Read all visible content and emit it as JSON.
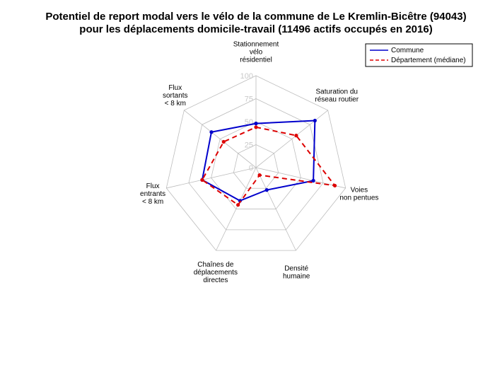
{
  "chart_data": {
    "type": "radar",
    "title_lines": [
      "Potentiel de report modal vers le vélo de la commune de Le Kremlin-Bicêtre (94043)",
      "pour les déplacements domicile-travail (11496 actifs occupés en 2016)"
    ],
    "axes": [
      [
        "Stationnement",
        "vélo",
        "résidentiel"
      ],
      [
        "Saturation du",
        "réseau routier"
      ],
      [
        "Voies",
        "non pentues"
      ],
      [
        "Densité",
        "humaine"
      ],
      [
        "Chaînes de",
        "déplacements",
        "directes"
      ],
      [
        "Flux",
        "entrants",
        "< 8 km"
      ],
      [
        "Flux",
        "sortants",
        "< 8 km"
      ]
    ],
    "ticks": [
      "0",
      "25",
      "50",
      "75",
      "100"
    ],
    "range": [
      0,
      100
    ],
    "series": [
      {
        "name": "Commune",
        "color": "#0000cc",
        "dash": "solid",
        "values": [
          48,
          82,
          64,
          27,
          40,
          60,
          62
        ]
      },
      {
        "name": "Département (médiane)",
        "color": "#dd0000",
        "dash": "dashed",
        "values": [
          44,
          56,
          88,
          9,
          45,
          60,
          45
        ]
      }
    ],
    "legend_position": "top-right",
    "grid": true
  }
}
